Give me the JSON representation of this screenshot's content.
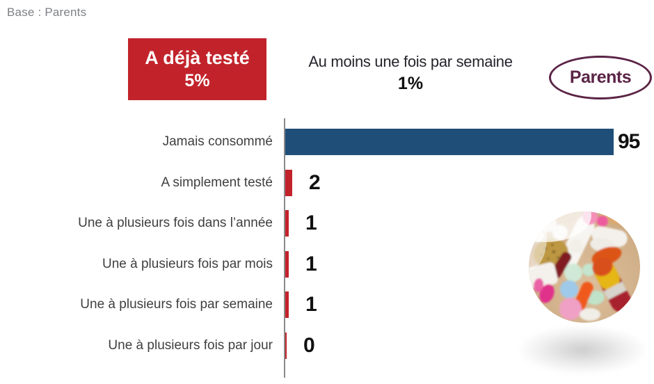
{
  "chart_data": {
    "type": "bar",
    "orientation": "horizontal",
    "base_note": "Base : Parents",
    "annotations": {
      "tested": {
        "label": "A déjà testé",
        "value": "5%"
      },
      "weekly": {
        "label": "Au moins une fois par semaine",
        "value": "1%"
      },
      "group": {
        "label": "Parents"
      }
    },
    "categories": [
      "Jamais consommé",
      "A simplement testé",
      "Une à plusieurs fois dans l’année",
      "Une à plusieurs fois par mois",
      "Une à plusieurs fois par semaine",
      "Une à plusieurs fois par jour"
    ],
    "values": [
      95,
      2,
      1,
      1,
      1,
      0
    ],
    "value_labels": [
      "95",
      "2",
      "1",
      "1",
      "1",
      "0"
    ],
    "bar_colors": [
      "#1f4e79",
      "#c2232b",
      "#c2232b",
      "#c2232b",
      "#c2232b",
      "#c2232b"
    ],
    "xlim": [
      0,
      100
    ],
    "grid": false,
    "legend": false,
    "colors": {
      "primary_bar": "#1f4e79",
      "accent_bar": "#c2232b",
      "badge_bg": "#c2232b",
      "badge_text": "#ffffff",
      "group_badge": "#5b2446",
      "category_text": "#3f3f3f",
      "value_text": "#111111",
      "axis": "#8a8a8a",
      "base_note_text": "#7d8085",
      "heading_text": "#26242c"
    }
  },
  "icons": {
    "pills_image": "pills-photo"
  }
}
